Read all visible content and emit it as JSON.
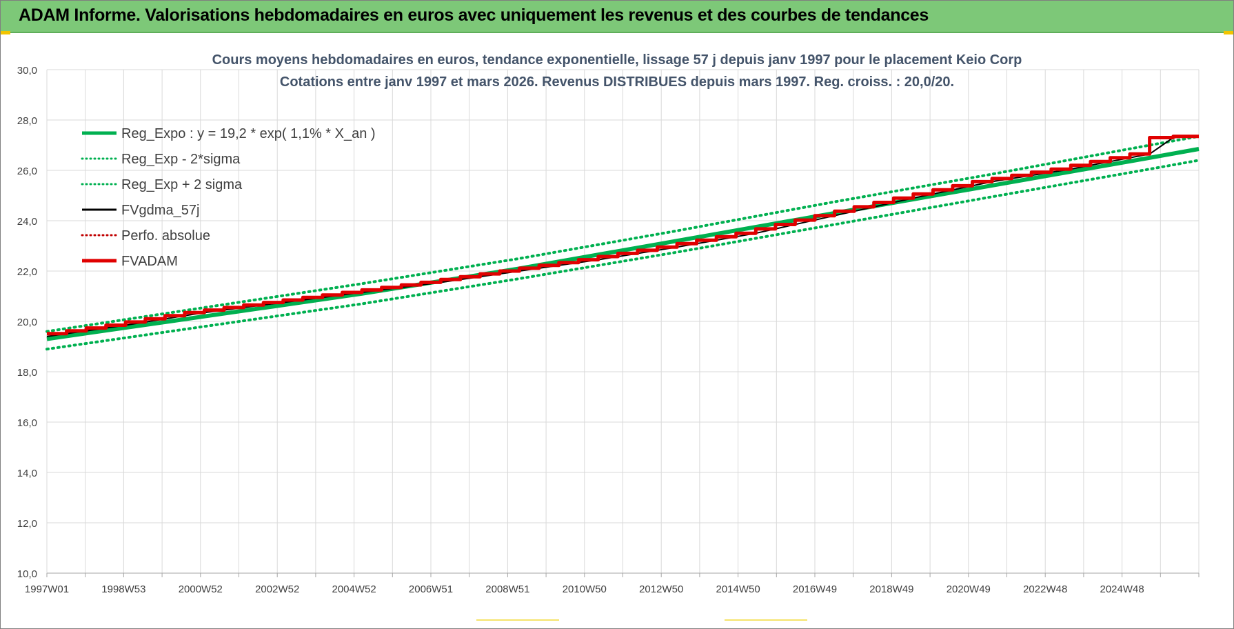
{
  "header": {
    "title": "ADAM Informe. Valorisations hebdomadaires en euros avec uniquement les revenus et des courbes de tendances"
  },
  "colors": {
    "header_bg": "#7dc878",
    "title_text": "#44546a",
    "regression": "#00b050",
    "fvgdma": "#000000",
    "fvadam": "#e00000",
    "perfo": "#c00000",
    "grid": "#d9d9d9"
  },
  "chart_data": {
    "type": "line",
    "title": "Cours moyens hebdomadaires en euros, tendance exponentielle, lissage 57 j depuis janv 1997 pour le placement Keio Corp",
    "subtitle": "Cotations entre janv 1997 et mars 2026. Revenus DISTRIBUES depuis mars 1997. Reg. croiss. : 20,0/20.",
    "x_tick_labels": [
      "1997W01",
      "1998W53",
      "2000W52",
      "2002W52",
      "2004W52",
      "2006W51",
      "2008W51",
      "2010W50",
      "2012W50",
      "2014W50",
      "2016W49",
      "2018W49",
      "2020W49",
      "2022W48",
      "2024W48"
    ],
    "x_range_years": [
      1997.0,
      2026.25
    ],
    "ylim": [
      10,
      30
    ],
    "y_ticks": [
      "10,0",
      "12,0",
      "14,0",
      "16,0",
      "18,0",
      "20,0",
      "22,0",
      "24,0",
      "26,0",
      "28,0",
      "30,0"
    ],
    "grid": true,
    "legend_position": "top-left",
    "series": [
      {
        "name": "Reg_Expo : y = 19,2 * exp( 1,1% *  X_an )",
        "style": "solid-thick",
        "color": "#00b050",
        "x": [
          1997.0,
          2001.0,
          2005.0,
          2009.0,
          2013.0,
          2017.0,
          2021.0,
          2025.0,
          2026.25
        ],
        "y": [
          19.3,
          20.2,
          21.1,
          22.1,
          23.2,
          24.3,
          25.4,
          26.5,
          26.85
        ]
      },
      {
        "name": "Reg_Exp - 2*sigma",
        "style": "dotted",
        "color": "#00b050",
        "x": [
          1997.0,
          2001.0,
          2005.0,
          2009.0,
          2013.0,
          2017.0,
          2021.0,
          2025.0,
          2026.25
        ],
        "y": [
          18.9,
          19.8,
          20.7,
          21.7,
          22.75,
          23.85,
          24.95,
          26.05,
          26.4
        ]
      },
      {
        "name": "Reg_Exp + 2 sigma",
        "style": "dotted",
        "color": "#00b050",
        "x": [
          1997.0,
          2001.0,
          2005.0,
          2009.0,
          2013.0,
          2017.0,
          2021.0,
          2025.0,
          2026.25
        ],
        "y": [
          19.6,
          20.55,
          21.5,
          22.5,
          23.6,
          24.75,
          25.85,
          27.0,
          27.35
        ]
      },
      {
        "name": "FVgdma_57j",
        "style": "solid",
        "color": "#000000",
        "x": [
          1997.0,
          1999.0,
          2001.0,
          2003.0,
          2005.0,
          2007.0,
          2009.0,
          2011.0,
          2013.0,
          2015.0,
          2017.0,
          2019.0,
          2021.0,
          2023.0,
          2025.0,
          2025.6,
          2026.25
        ],
        "y": [
          19.4,
          19.85,
          20.35,
          20.75,
          21.15,
          21.55,
          22.0,
          22.45,
          22.95,
          23.5,
          24.2,
          24.9,
          25.55,
          26.05,
          26.65,
          27.3,
          27.35
        ]
      },
      {
        "name": "Perfo. absolue",
        "style": "dotted",
        "color": "#c00000",
        "x": [],
        "y": []
      },
      {
        "name": "FVADAM",
        "style": "step-thick",
        "color": "#e00000",
        "x": [
          1997.0,
          1999.0,
          2001.0,
          2003.0,
          2005.0,
          2007.0,
          2009.0,
          2011.0,
          2013.0,
          2015.0,
          2017.0,
          2019.0,
          2021.0,
          2023.0,
          2025.0,
          2025.6,
          2026.25
        ],
        "y": [
          19.4,
          19.85,
          20.35,
          20.75,
          21.15,
          21.55,
          22.0,
          22.45,
          22.95,
          23.5,
          24.2,
          24.9,
          25.55,
          26.05,
          26.65,
          27.3,
          27.35
        ]
      }
    ]
  }
}
